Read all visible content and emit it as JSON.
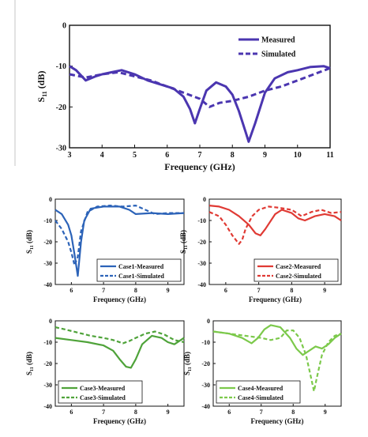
{
  "chart_data": [
    {
      "type": "line",
      "id": "main",
      "xlabel": "Frequency (GHz)",
      "ylabel": "S11 (dB)",
      "ylabel_main": "S",
      "ylabel_sub": "11",
      "ylabel_unit": " (dB)",
      "xlim": [
        3,
        11
      ],
      "ylim": [
        -30,
        0
      ],
      "xticks": [
        "3",
        "4",
        "5",
        "6",
        "7",
        "8",
        "9",
        "10",
        "11"
      ],
      "yticks": [
        "0",
        "-10",
        "-20",
        "-30"
      ],
      "legend_position": "top-right",
      "series": [
        {
          "name": "Measured",
          "color": "#4b36b0",
          "dashed": false,
          "x": [
            3.0,
            3.2,
            3.5,
            3.8,
            4.0,
            4.3,
            4.6,
            5.0,
            5.4,
            5.8,
            6.2,
            6.5,
            6.7,
            6.85,
            7.0,
            7.2,
            7.5,
            7.8,
            8.0,
            8.2,
            8.4,
            8.5,
            8.7,
            9.0,
            9.3,
            9.7,
            10.0,
            10.4,
            10.8,
            11.0
          ],
          "y": [
            -10,
            -11,
            -13.5,
            -12.5,
            -12,
            -11.5,
            -11,
            -12,
            -13.5,
            -14.5,
            -15.5,
            -17.5,
            -20.5,
            -24,
            -20.5,
            -16,
            -14,
            -15,
            -17,
            -21,
            -26,
            -28.5,
            -24,
            -16.5,
            -13,
            -11.5,
            -11,
            -10.2,
            -10,
            -10.5
          ]
        },
        {
          "name": "Simulated",
          "color": "#4b36b0",
          "dashed": true,
          "x": [
            3.0,
            3.5,
            4.0,
            4.5,
            5.0,
            5.5,
            6.0,
            6.5,
            7.0,
            7.3,
            7.6,
            8.0,
            8.5,
            9.0,
            9.5,
            10.0,
            10.5,
            11.0
          ],
          "y": [
            -12,
            -12.8,
            -12,
            -11.5,
            -12.5,
            -13.5,
            -15,
            -16.5,
            -18,
            -20,
            -19,
            -18.5,
            -17.5,
            -16,
            -15,
            -13.5,
            -12,
            -10.5
          ]
        }
      ]
    },
    {
      "type": "line",
      "id": "case1",
      "xlabel": "Frequency (GHz)",
      "ylabel": "S11 (dB)",
      "ylabel_main": "S",
      "ylabel_sub": "11",
      "ylabel_unit": " (dB)",
      "xlim": [
        5.5,
        9.5
      ],
      "ylim": [
        -40,
        0
      ],
      "xticks": [
        "6",
        "7",
        "8",
        "9"
      ],
      "yticks": [
        "0",
        "-10",
        "-20",
        "-30",
        "-40"
      ],
      "legend_position": "bottom-right",
      "series": [
        {
          "name": "Case1-Measured",
          "color": "#2c63b8",
          "dashed": false,
          "x": [
            5.5,
            5.7,
            5.9,
            6.0,
            6.1,
            6.2,
            6.3,
            6.4,
            6.6,
            7.0,
            7.5,
            7.8,
            8.0,
            8.5,
            9.0,
            9.5
          ],
          "y": [
            -5,
            -7,
            -12,
            -17,
            -26,
            -36,
            -20,
            -10,
            -4.5,
            -3.5,
            -3.5,
            -5,
            -7,
            -6.5,
            -7,
            -6.5
          ]
        },
        {
          "name": "Case1-Simulated",
          "color": "#2c63b8",
          "dashed": true,
          "x": [
            5.5,
            5.7,
            5.9,
            6.0,
            6.1,
            6.2,
            6.3,
            6.5,
            6.8,
            7.2,
            7.6,
            8.0,
            8.3,
            8.6,
            9.0,
            9.5
          ],
          "y": [
            -10,
            -14,
            -20,
            -25,
            -31,
            -27,
            -15,
            -6,
            -3.5,
            -3,
            -3.5,
            -3,
            -5,
            -7,
            -6.5,
            -6.5
          ]
        }
      ]
    },
    {
      "type": "line",
      "id": "case2",
      "xlabel": "Frequency (GHz)",
      "ylabel": "S11 (dB)",
      "ylabel_main": "S",
      "ylabel_sub": "11",
      "ylabel_unit": " (dB)",
      "xlim": [
        5.5,
        9.5
      ],
      "ylim": [
        -40,
        0
      ],
      "xticks": [
        "6",
        "7",
        "8",
        "9"
      ],
      "yticks": [
        "0",
        "-10",
        "-20",
        "-30",
        "-40"
      ],
      "legend_position": "bottom-right",
      "series": [
        {
          "name": "Case2-Measured",
          "color": "#e03a34",
          "dashed": false,
          "x": [
            5.5,
            5.8,
            6.1,
            6.4,
            6.7,
            6.9,
            7.05,
            7.2,
            7.5,
            7.7,
            8.0,
            8.2,
            8.4,
            8.7,
            9.0,
            9.3,
            9.5
          ],
          "y": [
            -3,
            -3.5,
            -5,
            -8,
            -12,
            -16,
            -17,
            -14,
            -7,
            -5,
            -6.5,
            -9,
            -10,
            -8,
            -7,
            -8,
            -10
          ]
        },
        {
          "name": "Case2-Simulated",
          "color": "#e03a34",
          "dashed": true,
          "x": [
            5.5,
            5.8,
            6.0,
            6.2,
            6.4,
            6.5,
            6.6,
            6.8,
            7.0,
            7.3,
            7.6,
            8.0,
            8.3,
            8.6,
            8.9,
            9.2,
            9.5
          ],
          "y": [
            -6,
            -8,
            -12,
            -17,
            -21,
            -19,
            -14,
            -8,
            -5,
            -3.5,
            -4,
            -5,
            -8,
            -6,
            -5,
            -6.5,
            -6
          ]
        }
      ]
    },
    {
      "type": "line",
      "id": "case3",
      "xlabel": "Frequency (GHz)",
      "ylabel": "S11 (dB)",
      "ylabel_main": "S",
      "ylabel_sub": "11",
      "ylabel_unit": " (dB)",
      "xlim": [
        5.5,
        9.5
      ],
      "ylim": [
        -40,
        0
      ],
      "xticks": [
        "6",
        "7",
        "8",
        "9"
      ],
      "yticks": [
        "0",
        "-10",
        "-20",
        "-30",
        "-40"
      ],
      "legend_position": "bottom-left",
      "series": [
        {
          "name": "Case3-Measured",
          "color": "#4fa33a",
          "dashed": false,
          "x": [
            5.5,
            6.0,
            6.5,
            7.0,
            7.3,
            7.5,
            7.7,
            7.85,
            8.0,
            8.2,
            8.5,
            8.8,
            9.0,
            9.2,
            9.5
          ],
          "y": [
            -8,
            -9,
            -10,
            -11.5,
            -14,
            -18,
            -21.5,
            -22,
            -18,
            -11,
            -7,
            -8,
            -10,
            -11,
            -8
          ]
        },
        {
          "name": "Case3-Simulated",
          "color": "#4fa33a",
          "dashed": true,
          "x": [
            5.5,
            5.8,
            6.2,
            6.6,
            7.0,
            7.3,
            7.6,
            7.8,
            8.0,
            8.3,
            8.6,
            8.9,
            9.2,
            9.5
          ],
          "y": [
            -3,
            -4,
            -5.5,
            -7,
            -8,
            -9,
            -10.5,
            -9.5,
            -8,
            -6,
            -5,
            -6.5,
            -9,
            -10
          ]
        }
      ]
    },
    {
      "type": "line",
      "id": "case4",
      "xlabel": "Frequency (GHz)",
      "ylabel": "S11 (dB)",
      "ylabel_main": "S",
      "ylabel_sub": "11",
      "ylabel_unit": " (dB)",
      "xlim": [
        5.5,
        9.5
      ],
      "ylim": [
        -40,
        0
      ],
      "xticks": [
        "6",
        "7",
        "8",
        "9"
      ],
      "yticks": [
        "0",
        "-10",
        "-20",
        "-30",
        "-40"
      ],
      "legend_position": "bottom-left",
      "series": [
        {
          "name": "Case4-Measured",
          "color": "#7cc94b",
          "dashed": false,
          "x": [
            5.5,
            6.0,
            6.4,
            6.7,
            6.9,
            7.1,
            7.3,
            7.6,
            7.9,
            8.1,
            8.3,
            8.5,
            8.7,
            8.9,
            9.1,
            9.3,
            9.5
          ],
          "y": [
            -5,
            -6,
            -8,
            -10.5,
            -8,
            -4,
            -2,
            -3,
            -8,
            -13,
            -16,
            -14,
            -12,
            -13,
            -11,
            -8,
            -6
          ]
        },
        {
          "name": "Case4-Simulated",
          "color": "#7cc94b",
          "dashed": true,
          "x": [
            5.5,
            6.0,
            6.5,
            7.0,
            7.3,
            7.6,
            7.8,
            8.0,
            8.2,
            8.4,
            8.55,
            8.65,
            8.75,
            8.9,
            9.1,
            9.3,
            9.5
          ],
          "y": [
            -5,
            -6,
            -7,
            -8,
            -9,
            -8,
            -4.5,
            -4.5,
            -8,
            -16,
            -26,
            -33,
            -26,
            -16,
            -10,
            -7,
            -6
          ]
        }
      ]
    }
  ]
}
